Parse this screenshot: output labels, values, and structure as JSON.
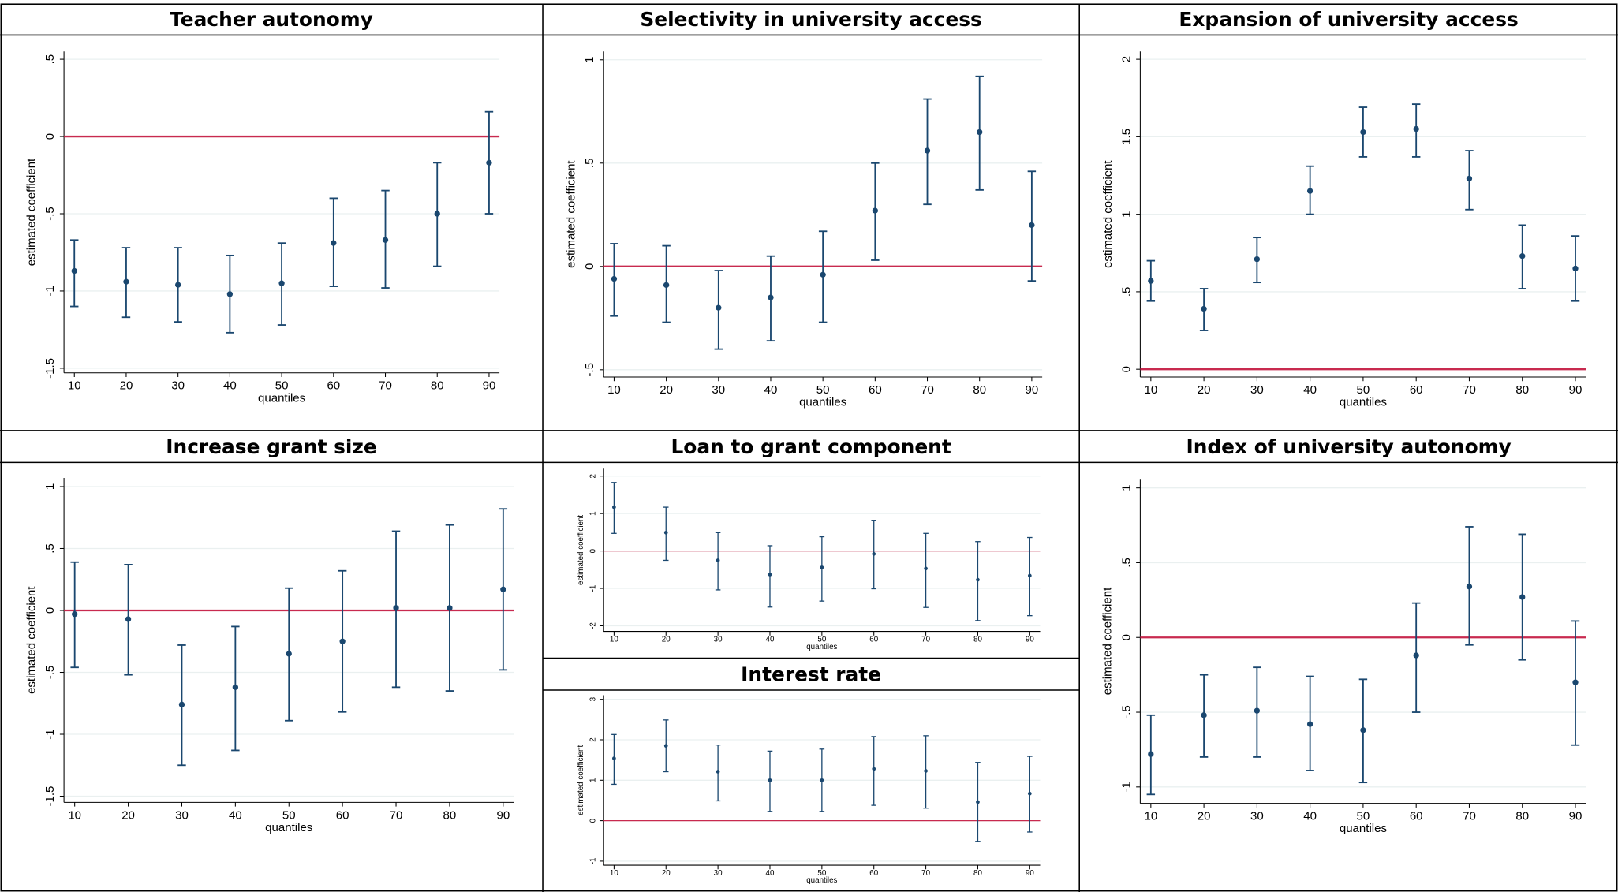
{
  "chart_data": [
    {
      "type": "errorbar",
      "title": "Teacher autonomy",
      "x_label": "quantiles",
      "y_label": "estimated coefficient",
      "color": "#1a476f",
      "hline": 0,
      "hline_color": "#c82a4f",
      "grid": true,
      "x": [
        10,
        20,
        30,
        40,
        50,
        60,
        70,
        80,
        90
      ],
      "values": [
        -0.87,
        -0.94,
        -0.96,
        -1.02,
        -0.95,
        -0.69,
        -0.67,
        -0.5,
        -0.17
      ],
      "lower": [
        -1.1,
        -1.17,
        -1.2,
        -1.27,
        -1.22,
        -0.97,
        -0.98,
        -0.84,
        -0.5
      ],
      "upper": [
        -0.67,
        -0.72,
        -0.72,
        -0.77,
        -0.69,
        -0.4,
        -0.35,
        -0.17,
        0.16
      ],
      "xlim": [
        8,
        92
      ],
      "xticks": [
        10,
        20,
        30,
        40,
        50,
        60,
        70,
        80,
        90
      ],
      "ylim": [
        -1.53,
        0.55
      ],
      "yticks": [
        {
          "value": -1.5,
          "label": "-1.5"
        },
        -1,
        {
          "value": -0.5,
          "label": "-.5"
        },
        0,
        {
          "value": 0.5,
          "label": ".5"
        }
      ]
    },
    {
      "type": "errorbar",
      "title": "Selectivity in university access",
      "x_label": "quantiles",
      "y_label": "estimated coefficient",
      "color": "#1a476f",
      "hline": 0,
      "hline_color": "#c82a4f",
      "grid": true,
      "x": [
        10,
        20,
        30,
        40,
        50,
        60,
        70,
        80,
        90
      ],
      "values": [
        -0.06,
        -0.09,
        -0.2,
        -0.15,
        -0.04,
        0.27,
        0.56,
        0.65,
        0.2
      ],
      "lower": [
        -0.24,
        -0.27,
        -0.4,
        -0.36,
        -0.27,
        0.03,
        0.3,
        0.37,
        -0.07
      ],
      "upper": [
        0.11,
        0.1,
        -0.02,
        0.05,
        0.17,
        0.5,
        0.81,
        0.92,
        0.46
      ],
      "xlim": [
        8,
        92
      ],
      "xticks": [
        10,
        20,
        30,
        40,
        50,
        60,
        70,
        80,
        90
      ],
      "ylim": [
        -0.535,
        1.04
      ],
      "yticks": [
        {
          "value": -0.5,
          "label": "-.5"
        },
        0,
        {
          "value": 0.5,
          "label": ".5"
        },
        1
      ]
    },
    {
      "type": "errorbar",
      "title": "Expansion of university access",
      "x_label": "quantiles",
      "y_label": "estimated coefficient",
      "color": "#1a476f",
      "hline": 0,
      "hline_color": "#c82a4f",
      "grid": true,
      "x": [
        10,
        20,
        30,
        40,
        50,
        60,
        70,
        80,
        90
      ],
      "values": [
        0.57,
        0.39,
        0.71,
        1.15,
        1.53,
        1.55,
        1.23,
        0.73,
        0.65
      ],
      "lower": [
        0.44,
        0.25,
        0.56,
        1.0,
        1.37,
        1.37,
        1.03,
        0.52,
        0.44
      ],
      "upper": [
        0.7,
        0.52,
        0.85,
        1.31,
        1.69,
        1.71,
        1.41,
        0.93,
        0.86
      ],
      "xlim": [
        8,
        92
      ],
      "xticks": [
        10,
        20,
        30,
        40,
        50,
        60,
        70,
        80,
        90
      ],
      "ylim": [
        -0.05,
        2.05
      ],
      "yticks": [
        0,
        {
          "value": 0.5,
          "label": ".5"
        },
        1,
        {
          "value": 1.5,
          "label": "1.5"
        },
        2
      ]
    },
    {
      "type": "errorbar",
      "title": "Increase grant size",
      "x_label": "quantiles",
      "y_label": "estimated coefficient",
      "color": "#1a476f",
      "hline": 0,
      "hline_color": "#c82a4f",
      "grid": true,
      "x": [
        10,
        20,
        30,
        40,
        50,
        60,
        70,
        80,
        90
      ],
      "values": [
        -0.03,
        -0.07,
        -0.76,
        -0.62,
        -0.35,
        -0.25,
        0.02,
        0.02,
        0.17
      ],
      "lower": [
        -0.46,
        -0.52,
        -1.25,
        -1.13,
        -0.89,
        -0.82,
        -0.62,
        -0.65,
        -0.48
      ],
      "upper": [
        0.39,
        0.37,
        -0.28,
        -0.13,
        0.18,
        0.32,
        0.64,
        0.69,
        0.82
      ],
      "xlim": [
        8,
        92
      ],
      "xticks": [
        10,
        20,
        30,
        40,
        50,
        60,
        70,
        80,
        90
      ],
      "ylim": [
        -1.55,
        1.07
      ],
      "yticks": [
        {
          "value": -1.5,
          "label": "-1.5"
        },
        -1,
        {
          "value": -0.5,
          "label": "-.5"
        },
        0,
        {
          "value": 0.5,
          "label": ".5"
        },
        1
      ]
    },
    {
      "type": "errorbar",
      "title": "Loan to grant component",
      "x_label": "quantiles",
      "y_label": "estimated coefficient",
      "color": "#1a476f",
      "hline": 0,
      "hline_color": "#c82a4f",
      "grid": true,
      "x": [
        10,
        20,
        30,
        40,
        50,
        60,
        70,
        80,
        90
      ],
      "values": [
        1.17,
        0.49,
        -0.25,
        -0.63,
        -0.44,
        -0.08,
        -0.47,
        -0.77,
        -0.66
      ],
      "lower": [
        0.47,
        -0.25,
        -1.04,
        -1.5,
        -1.34,
        -1.01,
        -1.51,
        -1.86,
        -1.73
      ],
      "upper": [
        1.83,
        1.17,
        0.49,
        0.14,
        0.38,
        0.82,
        0.47,
        0.25,
        0.36
      ],
      "xlim": [
        8,
        92
      ],
      "xticks": [
        10,
        20,
        30,
        40,
        50,
        60,
        70,
        80,
        90
      ],
      "ylim": [
        -2.15,
        2.2
      ],
      "yticks": [
        -2,
        -1,
        0,
        1,
        2
      ]
    },
    {
      "type": "errorbar",
      "title": "Interest rate",
      "x_label": "quantiles",
      "y_label": "estimated coefficient",
      "color": "#1a476f",
      "hline": 0,
      "hline_color": "#c82a4f",
      "grid": true,
      "x": [
        10,
        20,
        30,
        40,
        50,
        60,
        70,
        80,
        90
      ],
      "values": [
        1.54,
        1.85,
        1.21,
        1.0,
        1.0,
        1.28,
        1.23,
        0.46,
        0.67
      ],
      "lower": [
        0.9,
        1.21,
        0.49,
        0.23,
        0.23,
        0.38,
        0.31,
        -0.51,
        -0.28
      ],
      "upper": [
        2.13,
        2.49,
        1.87,
        1.72,
        1.77,
        2.08,
        2.1,
        1.44,
        1.59
      ],
      "xlim": [
        8,
        92
      ],
      "xticks": [
        10,
        20,
        30,
        40,
        50,
        60,
        70,
        80,
        90
      ],
      "ylim": [
        -1.1,
        3.1
      ],
      "yticks": [
        -1,
        0,
        1,
        2,
        3
      ]
    },
    {
      "type": "errorbar",
      "title": "Index of university autonomy",
      "x_label": "quantiles",
      "y_label": "estimated coefficient",
      "color": "#1a476f",
      "hline": 0,
      "hline_color": "#c82a4f",
      "grid": true,
      "x": [
        10,
        20,
        30,
        40,
        50,
        60,
        70,
        80,
        90
      ],
      "values": [
        -0.78,
        -0.52,
        -0.49,
        -0.58,
        -0.62,
        -0.12,
        0.34,
        0.27,
        -0.3
      ],
      "lower": [
        -1.05,
        -0.8,
        -0.8,
        -0.89,
        -0.97,
        -0.5,
        -0.05,
        -0.15,
        -0.72
      ],
      "upper": [
        -0.52,
        -0.25,
        -0.2,
        -0.26,
        -0.28,
        0.23,
        0.74,
        0.69,
        0.11
      ],
      "xlim": [
        8,
        92
      ],
      "xticks": [
        10,
        20,
        30,
        40,
        50,
        60,
        70,
        80,
        90
      ],
      "ylim": [
        -1.11,
        1.06
      ],
      "yticks": [
        -1,
        {
          "value": -0.5,
          "label": "-.5"
        },
        0,
        {
          "value": 0.5,
          "label": ".5"
        },
        1
      ]
    }
  ]
}
